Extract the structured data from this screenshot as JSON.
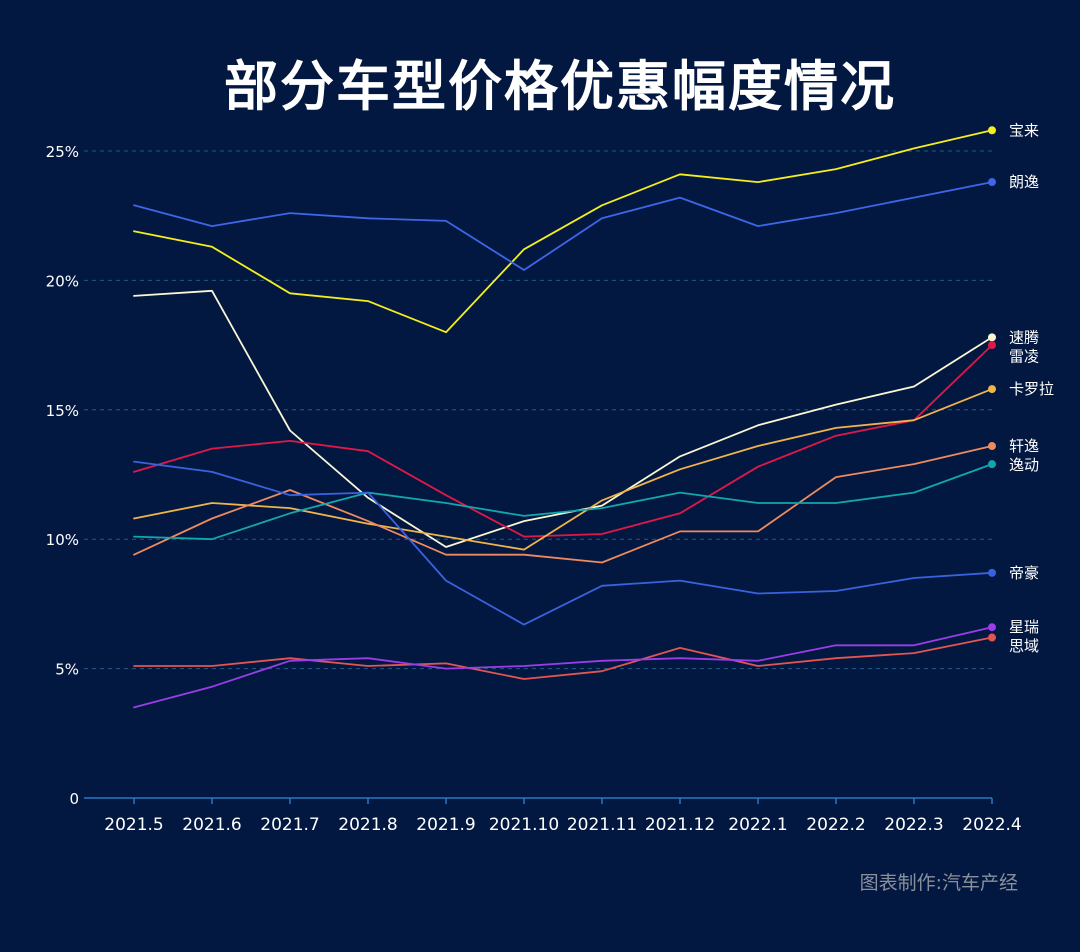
{
  "page": {
    "title": "部分车型价格优惠幅度情况",
    "credit": "图表制作:汽车产经",
    "colors": {
      "background": "#031840",
      "grid": "#1f5a86",
      "axis": "#2b78c2",
      "text": "#ffffff"
    }
  },
  "chart_data": {
    "type": "line",
    "title": "部分车型价格优惠幅度情况",
    "xlabel": "",
    "ylabel": "",
    "categories": [
      "2021.5",
      "2021.6",
      "2021.7",
      "2021.8",
      "2021.9",
      "2021.10",
      "2021.11",
      "2021.12",
      "2022.1",
      "2022.2",
      "2022.3",
      "2022.4"
    ],
    "ylim": [
      0,
      26
    ],
    "yticks": [
      {
        "value": 0,
        "label": "0"
      },
      {
        "value": 5,
        "label": "5%"
      },
      {
        "value": 10,
        "label": "10%"
      },
      {
        "value": 15,
        "label": "15%"
      },
      {
        "value": 20,
        "label": "20%"
      },
      {
        "value": 25,
        "label": "25%"
      }
    ],
    "grid": true,
    "legend": "end-of-line labels",
    "series": [
      {
        "name": "宝来",
        "color": "#f5ee1f",
        "values": [
          21.9,
          21.3,
          19.5,
          19.2,
          18.0,
          21.2,
          22.9,
          24.1,
          23.8,
          24.3,
          25.1,
          25.8
        ]
      },
      {
        "name": "朗逸",
        "color": "#3d66e8",
        "values": [
          22.9,
          22.1,
          22.6,
          22.4,
          22.3,
          20.4,
          22.4,
          23.2,
          22.1,
          22.6,
          23.2,
          23.8
        ]
      },
      {
        "name": "速腾",
        "color": "#fbf6d4",
        "values": [
          19.4,
          19.6,
          14.2,
          11.6,
          9.7,
          10.7,
          11.3,
          13.2,
          14.4,
          15.2,
          15.9,
          17.8
        ]
      },
      {
        "name": "雷凌",
        "color": "#e01848",
        "values": [
          12.6,
          13.5,
          13.8,
          13.4,
          11.7,
          10.1,
          10.2,
          11.0,
          12.8,
          14.0,
          14.6,
          17.5
        ]
      },
      {
        "name": "卡罗拉",
        "color": "#f0b44a",
        "values": [
          10.8,
          11.4,
          11.2,
          10.6,
          10.1,
          9.6,
          11.5,
          12.7,
          13.6,
          14.3,
          14.6,
          15.8
        ]
      },
      {
        "name": "轩逸",
        "color": "#ee8a5d",
        "values": [
          9.4,
          10.8,
          11.9,
          10.7,
          9.4,
          9.4,
          9.1,
          10.3,
          10.3,
          12.4,
          12.9,
          13.6
        ]
      },
      {
        "name": "逸动",
        "color": "#12a6ad",
        "values": [
          10.1,
          10.0,
          11.0,
          11.8,
          11.4,
          10.9,
          11.2,
          11.8,
          11.4,
          11.4,
          11.8,
          12.9
        ]
      },
      {
        "name": "帝豪",
        "color": "#3a62de",
        "values": [
          13.0,
          12.6,
          11.7,
          11.8,
          8.4,
          6.7,
          8.2,
          8.4,
          7.9,
          8.0,
          8.5,
          8.7
        ]
      },
      {
        "name": "思域",
        "color": "#e35552",
        "values": [
          5.1,
          5.1,
          5.4,
          5.1,
          5.2,
          4.6,
          4.9,
          5.8,
          5.1,
          5.4,
          5.6,
          6.2
        ]
      },
      {
        "name": "星瑞",
        "color": "#9a3de8",
        "values": [
          3.5,
          4.3,
          5.3,
          5.4,
          5.0,
          5.1,
          5.3,
          5.4,
          5.3,
          5.9,
          5.9,
          6.6
        ]
      }
    ]
  }
}
